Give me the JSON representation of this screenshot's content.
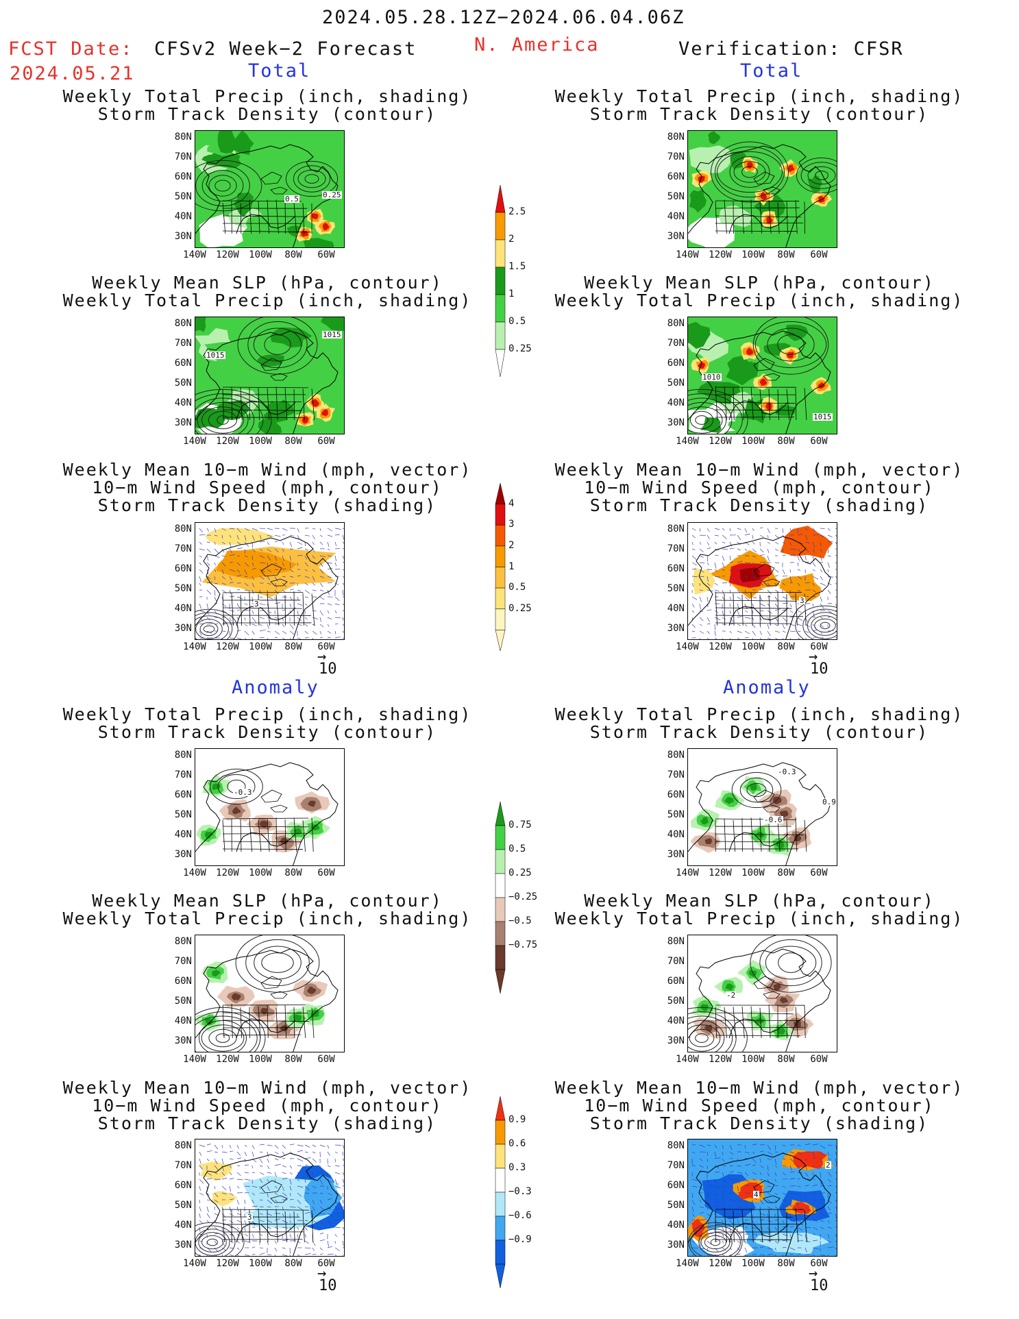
{
  "header": {
    "date_range": "2024.05.28.12Z−2024.06.04.06Z",
    "fcst_label": "FCST Date:",
    "fcst_date": "2024.05.21",
    "left_title": "CFSv2 Week−2 Forecast",
    "region": "N. America",
    "right_title": "Verification: CFSR"
  },
  "sections": {
    "total": "Total",
    "anomaly": "Anomaly"
  },
  "titles": {
    "precip_storm": [
      "Weekly Total Precip (inch, shading)",
      "Storm Track Density (contour)"
    ],
    "slp_precip": [
      "Weekly Mean SLP (hPa, contour)",
      "Weekly Total Precip (inch, shading)"
    ],
    "wind_storm": [
      "Weekly Mean 10−m Wind (mph, vector)",
      "10−m Wind Speed (mph, contour)",
      "Storm Track Density (shading)"
    ]
  },
  "axes": {
    "lat_ticks": [
      "80N",
      "70N",
      "60N",
      "50N",
      "40N",
      "30N"
    ],
    "lon_ticks": [
      "140W",
      "120W",
      "100W",
      "80W",
      "60W"
    ]
  },
  "panel_labels": {
    "p1": [
      "0.5",
      "0.25"
    ],
    "p3": [
      "1015",
      "1015"
    ],
    "p4": [
      "1010",
      "1015"
    ],
    "p5": [
      "3"
    ],
    "p6": [
      "3"
    ],
    "p7": [
      "-0.3"
    ],
    "p8": [
      "-0.3",
      "-0.6",
      "0.9"
    ],
    "p10": [
      "-2"
    ],
    "p11": [
      "3"
    ],
    "p12": [
      "4",
      "2"
    ]
  },
  "vector_ref": "10",
  "colorbars": {
    "precip_total": {
      "labels": [
        "2.5",
        "2",
        "1.5",
        "1",
        "0.5",
        "0.25"
      ],
      "colors": [
        "#e01010",
        "#f79a00",
        "#fde37a",
        "#1a9a1a",
        "#44d044",
        "#b8f0b0"
      ]
    },
    "storm_total": {
      "labels": [
        "4",
        "3",
        "2",
        "1",
        "0.5",
        "0.25"
      ],
      "colors": [
        "#a00000",
        "#e01010",
        "#f55a00",
        "#f79a00",
        "#fbc040",
        "#fde37a",
        "#fff5c0"
      ]
    },
    "precip_anom": {
      "labels": [
        "0.75",
        "0.5",
        "0.25",
        "−0.25",
        "−0.5",
        "−0.75"
      ],
      "colors": [
        "#1a9a1a",
        "#44d044",
        "#b8f0b0",
        "#ffffff",
        "#e8c8b8",
        "#a88070",
        "#6a3a2a"
      ]
    },
    "storm_anom": {
      "labels": [
        "0.9",
        "0.6",
        "0.3",
        "−0.3",
        "−0.6",
        "−0.9"
      ],
      "colors": [
        "#f03010",
        "#f79a00",
        "#fde37a",
        "#ffffff",
        "#b0e8f8",
        "#40a8f0",
        "#1060e0"
      ]
    }
  },
  "colors": {
    "header_red": "#e8302a",
    "section_blue": "#2233e0"
  }
}
